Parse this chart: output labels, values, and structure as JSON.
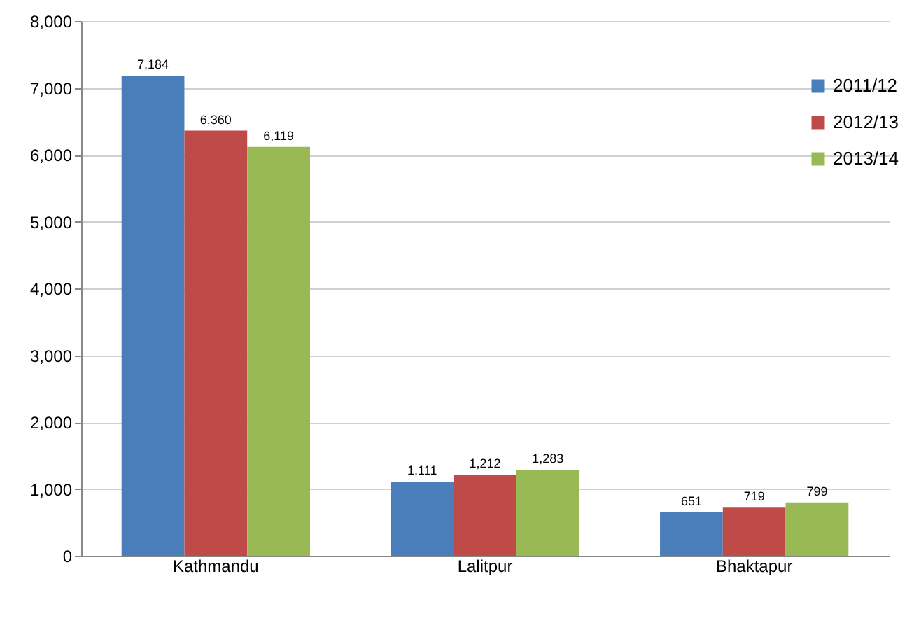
{
  "chart_data": {
    "type": "bar",
    "categories": [
      "Kathmandu",
      "Lalitpur",
      "Bhaktapur"
    ],
    "series": [
      {
        "name": "2011/12",
        "color": "#4a7ebb",
        "values": [
          7184,
          1111,
          651
        ],
        "value_labels": [
          "7,184",
          "1,111",
          "651"
        ]
      },
      {
        "name": "2012/13",
        "color": "#be4b48",
        "values": [
          6360,
          1212,
          719
        ],
        "value_labels": [
          "6,360",
          "1,212",
          "719"
        ]
      },
      {
        "name": "2013/14",
        "color": "#98b954",
        "values": [
          6119,
          1283,
          799
        ],
        "value_labels": [
          "6,119",
          "1,283",
          "799"
        ]
      }
    ],
    "ylim": [
      0,
      8000
    ],
    "yticks": [
      0,
      {
        "value": 1000,
        "label": "1,000"
      },
      {
        "value": 2000,
        "label": "2,000"
      },
      {
        "value": 3000,
        "label": "3,000"
      },
      {
        "value": 4000,
        "label": "4,000"
      },
      {
        "value": 5000,
        "label": "5,000"
      },
      {
        "value": 6000,
        "label": "6,000"
      },
      {
        "value": 7000,
        "label": "7,000"
      },
      {
        "value": 8000,
        "label": "8,000"
      }
    ],
    "grid": "y",
    "legend": "top right"
  }
}
